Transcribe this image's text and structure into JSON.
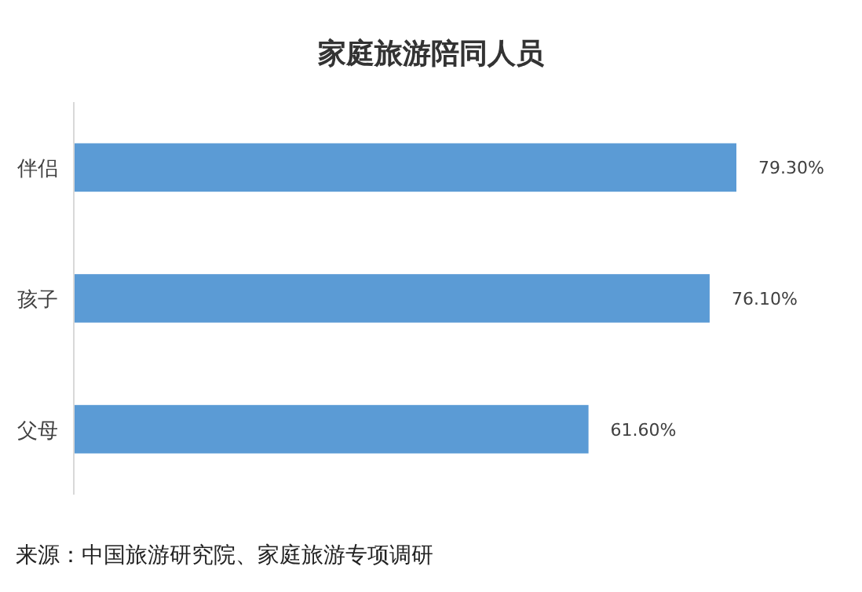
{
  "chart_data": {
    "type": "bar",
    "orientation": "horizontal",
    "title": "家庭旅游陪同人员",
    "categories": [
      "伴侣",
      "孩子",
      "父母"
    ],
    "values": [
      79.3,
      76.1,
      61.6
    ],
    "value_labels": [
      "79.30%",
      "76.10%",
      "61.60%"
    ],
    "color": "#5b9bd5",
    "annotations": [
      "来源：中国旅游研究院、家庭旅游专项调研"
    ]
  }
}
